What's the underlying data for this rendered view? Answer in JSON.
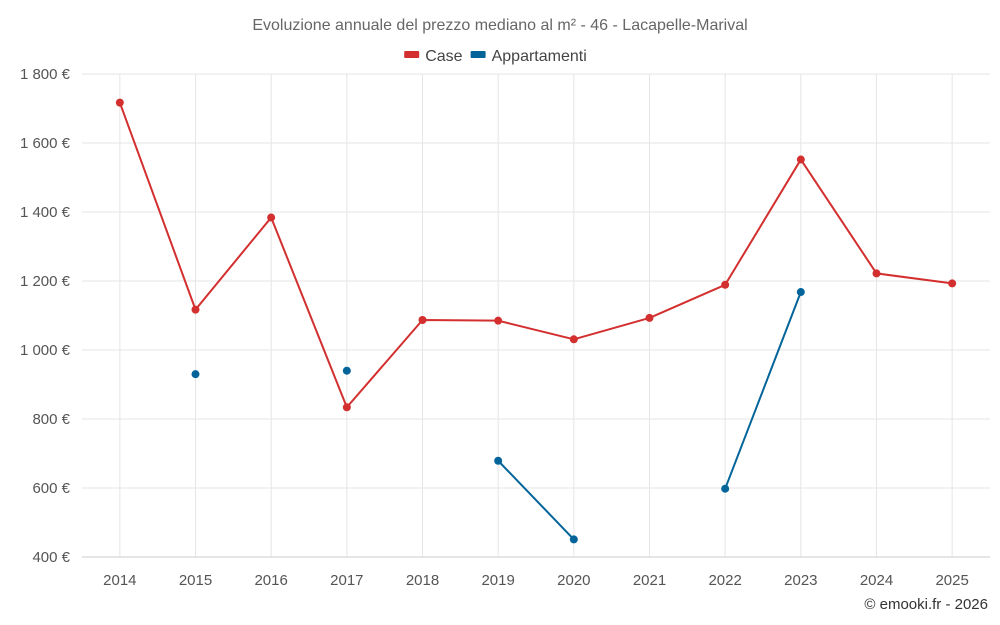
{
  "chart_data": {
    "type": "line",
    "title": "Evoluzione annuale del prezzo mediano al m² - 46 - Lacapelle-Marival",
    "x": [
      "2014",
      "2015",
      "2016",
      "2017",
      "2018",
      "2019",
      "2020",
      "2021",
      "2022",
      "2023",
      "2024",
      "2025"
    ],
    "ylim": [
      400,
      1800
    ],
    "yticks": [
      400,
      600,
      800,
      1000,
      1200,
      1400,
      1600,
      1800
    ],
    "ytick_labels": [
      "400 €",
      "600 €",
      "800 €",
      "1 000 €",
      "1 200 €",
      "1 400 €",
      "1 600 €",
      "1 800 €"
    ],
    "grid": true,
    "legend_position": "top-center",
    "series": [
      {
        "name": "Case",
        "color": "#d32f2f",
        "values": [
          1717,
          1117,
          1384,
          834,
          1087,
          1085,
          1031,
          1093,
          1189,
          1552,
          1222,
          1193
        ]
      },
      {
        "name": "Appartamenti",
        "color": "#03649a",
        "values": [
          null,
          930,
          null,
          940,
          null,
          679,
          451,
          null,
          598,
          1168,
          null,
          null
        ]
      }
    ],
    "credit": "© emooki.fr - 2026"
  }
}
